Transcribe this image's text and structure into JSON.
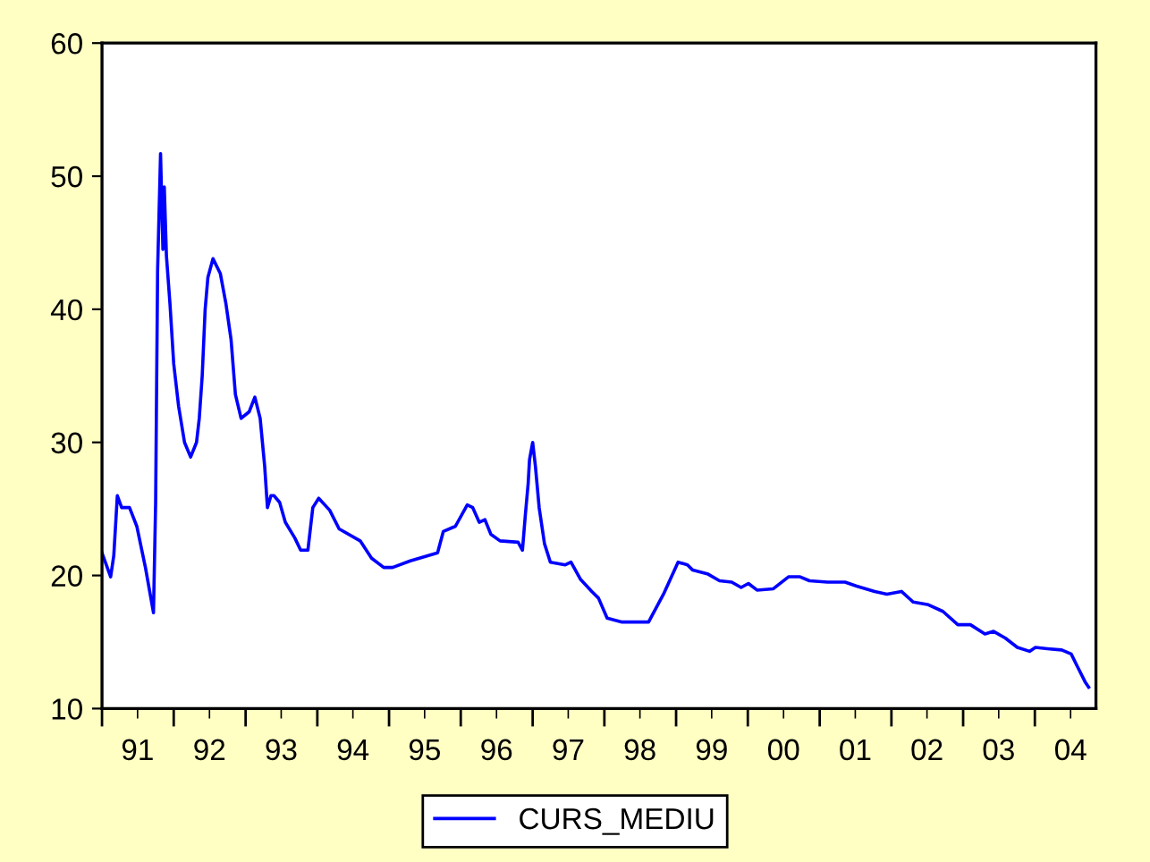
{
  "chart_data": {
    "type": "line",
    "series": [
      {
        "name": "CURS_MEDIU",
        "color": "#0000ff",
        "x": [
          "1991-01-01",
          "1991-02-14",
          "1991-03-02",
          "1991-03-20",
          "1991-04-11",
          "1991-05-21",
          "1991-06-27",
          "1991-08-10",
          "1991-09-20",
          "1991-10-01",
          "1991-10-11",
          "1991-10-26",
          "1991-11-07",
          "1991-11-14",
          "1991-11-25",
          "1991-12-13",
          "1992-01-01",
          "1992-01-26",
          "1992-02-25",
          "1992-03-27",
          "1992-04-26",
          "1992-05-10",
          "1992-05-25",
          "1992-06-09",
          "1992-06-23",
          "1992-07-19",
          "1992-08-25",
          "1992-09-23",
          "1992-10-19",
          "1992-11-10",
          "1992-12-09",
          "1993-01-19",
          "1993-02-17",
          "1993-03-16",
          "1993-04-08",
          "1993-04-22",
          "1993-05-10",
          "1993-05-25",
          "1993-06-23",
          "1993-07-22",
          "1993-09-09",
          "1993-10-08",
          "1993-11-14",
          "1993-12-09",
          "1994-01-08",
          "1994-03-05",
          "1994-04-22",
          "1994-08-07",
          "1994-10-04",
          "1994-12-05",
          "1995-01-19",
          "1995-04-19",
          "1995-09-05",
          "1995-10-04",
          "1995-12-05",
          "1996-02-03",
          "1996-03-02",
          "1996-04-04",
          "1996-05-03",
          "1996-06-02",
          "1996-07-19",
          "1996-10-19",
          "1996-11-10",
          "1996-11-25",
          "1996-12-09",
          "1996-12-16",
          "1997-01-01",
          "1997-01-15",
          "1997-02-03",
          "1997-03-02",
          "1997-04-01",
          "1997-06-16",
          "1997-07-15",
          "1997-09-02",
          "1997-10-29",
          "1997-12-02",
          "1998-01-15",
          "1998-04-01",
          "1998-08-14",
          "1998-10-29",
          "1999-01-11",
          "1999-02-28",
          "1999-03-27",
          "1999-06-13",
          "1999-08-10",
          "1999-10-11",
          "1999-11-28",
          "2000-01-04",
          "2000-02-17",
          "2000-05-10",
          "2000-07-26",
          "2000-09-23",
          "2000-11-10",
          "2001-02-10",
          "2001-05-10",
          "2001-07-08",
          "2001-10-08",
          "2001-12-09",
          "2002-02-21",
          "2002-04-22",
          "2002-07-08",
          "2002-09-20",
          "2002-12-05",
          "2003-02-07",
          "2003-04-22",
          "2003-06-05",
          "2003-08-03",
          "2003-10-04",
          "2003-12-05",
          "2004-01-04",
          "2004-03-05",
          "2004-05-17",
          "2004-07-04",
          "2004-08-03",
          "2004-09-13",
          "2004-10-01"
        ],
        "values": [
          21.7,
          19.9,
          21.5,
          26.0,
          25.1,
          25.1,
          23.7,
          20.6,
          17.2,
          25.5,
          42.9,
          51.7,
          44.5,
          49.2,
          44.0,
          40.4,
          35.9,
          32.7,
          30.0,
          28.9,
          30.0,
          31.8,
          35.0,
          40.0,
          42.4,
          43.8,
          42.7,
          40.4,
          37.7,
          33.6,
          31.8,
          32.3,
          33.4,
          31.8,
          28.2,
          25.1,
          26.0,
          26.0,
          25.5,
          24.0,
          22.8,
          21.9,
          21.9,
          25.1,
          25.8,
          24.9,
          23.5,
          22.6,
          21.3,
          20.6,
          20.6,
          21.1,
          21.7,
          23.3,
          23.7,
          25.3,
          25.1,
          24.0,
          24.2,
          23.1,
          22.6,
          22.5,
          21.9,
          24.6,
          26.9,
          28.7,
          30.0,
          28.2,
          25.1,
          22.4,
          21.0,
          20.8,
          21.0,
          19.7,
          18.8,
          18.3,
          16.8,
          16.5,
          16.5,
          18.6,
          21.0,
          20.8,
          20.4,
          20.1,
          19.6,
          19.5,
          19.1,
          19.4,
          18.9,
          19.0,
          19.9,
          19.9,
          19.6,
          19.5,
          19.5,
          19.2,
          18.8,
          18.6,
          18.8,
          18.0,
          17.8,
          17.3,
          16.3,
          16.3,
          15.6,
          15.8,
          15.3,
          14.6,
          14.3,
          14.6,
          14.5,
          14.4,
          14.1,
          13.2,
          12.0,
          11.6
        ]
      }
    ],
    "xlim": [
      "1991-01-01",
      "2004-11-07"
    ],
    "xticks": [
      {
        "value": "1991-01-01",
        "label": null
      },
      {
        "value": "1991-07-01",
        "label": "91"
      },
      {
        "value": "1992-01-01",
        "label": null
      },
      {
        "value": "1992-07-01",
        "label": "92"
      },
      {
        "value": "1993-01-01",
        "label": null
      },
      {
        "value": "1993-07-01",
        "label": "93"
      },
      {
        "value": "1994-01-01",
        "label": null
      },
      {
        "value": "1994-07-01",
        "label": "94"
      },
      {
        "value": "1995-01-01",
        "label": null
      },
      {
        "value": "1995-07-01",
        "label": "95"
      },
      {
        "value": "1996-01-01",
        "label": null
      },
      {
        "value": "1996-07-01",
        "label": "96"
      },
      {
        "value": "1997-01-01",
        "label": null
      },
      {
        "value": "1997-07-01",
        "label": "97"
      },
      {
        "value": "1998-01-01",
        "label": null
      },
      {
        "value": "1998-07-01",
        "label": "98"
      },
      {
        "value": "1999-01-01",
        "label": null
      },
      {
        "value": "1999-07-01",
        "label": "99"
      },
      {
        "value": "2000-01-01",
        "label": null
      },
      {
        "value": "2000-07-01",
        "label": "00"
      },
      {
        "value": "2001-01-01",
        "label": null
      },
      {
        "value": "2001-07-01",
        "label": "01"
      },
      {
        "value": "2002-01-01",
        "label": null
      },
      {
        "value": "2002-07-01",
        "label": "02"
      },
      {
        "value": "2003-01-01",
        "label": null
      },
      {
        "value": "2003-07-01",
        "label": "03"
      },
      {
        "value": "2004-01-01",
        "label": null
      },
      {
        "value": "2004-07-01",
        "label": "04"
      }
    ],
    "ylim": [
      10,
      60
    ],
    "yticks": [
      10,
      20,
      30,
      40,
      50,
      60
    ],
    "grid": false,
    "legend": "bottom",
    "marker": "none",
    "line_style": "solid"
  }
}
